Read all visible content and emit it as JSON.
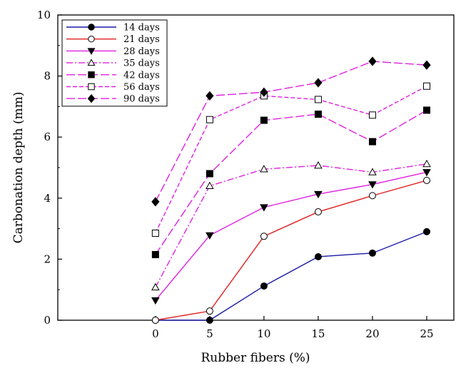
{
  "chart_data": {
    "type": "line",
    "xlabel": "Rubber fibers (%)",
    "ylabel": "Carbonation depth (mm)",
    "xlim": [
      -9,
      27.5
    ],
    "ylim": [
      0,
      10
    ],
    "x": [
      0,
      5,
      10,
      15,
      20,
      25
    ],
    "xticks": [
      0,
      5,
      10,
      15,
      20,
      25
    ],
    "yticks": [
      0,
      2,
      4,
      6,
      8,
      10
    ],
    "legend_position": "top-left",
    "grid": false,
    "series": [
      {
        "name": "14 days",
        "values": [
          0,
          0,
          1.12,
          2.08,
          2.2,
          2.9
        ],
        "color": "#1a1aa6",
        "dash": "",
        "marker": "circle",
        "fill": "filled"
      },
      {
        "name": "21 days",
        "values": [
          0,
          0.3,
          2.75,
          3.55,
          4.08,
          4.58
        ],
        "color": "#e02020",
        "dash": "",
        "marker": "circle",
        "fill": "open"
      },
      {
        "name": "28 days",
        "values": [
          0.65,
          2.78,
          3.7,
          4.13,
          4.45,
          4.85
        ],
        "color": "#e020e0",
        "dash": "",
        "marker": "triangle-down",
        "fill": "filled"
      },
      {
        "name": "35 days",
        "values": [
          1.08,
          4.4,
          4.95,
          5.07,
          4.85,
          5.12
        ],
        "color": "#e020e0",
        "dash": "9,3,2,3",
        "marker": "triangle-up",
        "fill": "open"
      },
      {
        "name": "42 days",
        "values": [
          2.15,
          4.8,
          6.55,
          6.75,
          5.85,
          6.88
        ],
        "color": "#e020e0",
        "dash": "12,4",
        "marker": "square",
        "fill": "filled"
      },
      {
        "name": "56 days",
        "values": [
          2.85,
          6.57,
          7.35,
          7.23,
          6.72,
          7.67
        ],
        "color": "#e020e0",
        "dash": "6,3",
        "marker": "square",
        "fill": "open"
      },
      {
        "name": "90 days",
        "values": [
          3.88,
          7.35,
          7.47,
          7.78,
          8.48,
          8.36
        ],
        "color": "#e020e0",
        "dash": "12,4",
        "marker": "diamond",
        "fill": "filled"
      }
    ]
  }
}
